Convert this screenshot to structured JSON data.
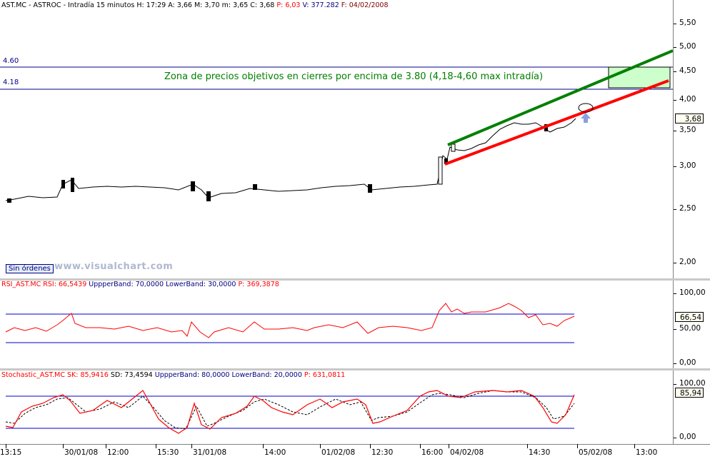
{
  "main_panel": {
    "header": {
      "symbol": "AST.MC - ASTROC - Intradía 15 minutos",
      "h_label": "H:",
      "h_value": "17:29",
      "a_label": "A:",
      "a_value": "3,66",
      "m_label": "M:",
      "m_value": "3,70",
      "mn_label": "m:",
      "mn_value": "3,65",
      "c_label": "C:",
      "c_value": "3,68",
      "p_label": "P:",
      "p_value": "6,03",
      "v_label": "V:",
      "v_value": "377.282",
      "f_label": "F:",
      "f_value": "04/02/2008"
    },
    "hline_top_label": "4.60",
    "hline_bottom_label": "4.18",
    "zone_text": "Zona de precios objetivos en cierres por encima de 3.80 (4,18-4,60 max intradía)",
    "button_sin_ordenes": "Sin órdenes",
    "watermark": "www.visualchart.com",
    "y_ticks": [
      "5,50",
      "5,00",
      "4,50",
      "4,00",
      "3,50",
      "3,00",
      "2,50",
      "2,00"
    ],
    "last_value": "3,68",
    "colors": {
      "up_trend": "#008000",
      "down_trend": "#ff0000",
      "hline": "#00008b",
      "zone_fill": "#ccffcc"
    }
  },
  "rsi_panel": {
    "name": "RSI_AST.MC",
    "rsi_label": "RSI:",
    "rsi_value": "66,5439",
    "upper_label": "UppperBand:",
    "upper_value": "70,0000",
    "lower_label": "LowerBand:",
    "lower_value": "30,0000",
    "p_label": "P:",
    "p_value": "369,3878",
    "y_ticks": [
      "100,00",
      "50,00",
      "0,00"
    ],
    "last_value": "66,54"
  },
  "stoch_panel": {
    "name": "Stochastic_AST.MC",
    "sk_label": "SK:",
    "sk_value": "85,9416",
    "sd_label": "SD:",
    "sd_value": "73,4594",
    "upper_label": "UppperBand:",
    "upper_value": "80,0000",
    "lower_label": "LowerBand:",
    "lower_value": "20,0000",
    "p_label": "P:",
    "p_value": "631,0811",
    "y_ticks": [
      "100,00",
      "0,00"
    ],
    "last_value": "85,94"
  },
  "x_axis": {
    "labels": [
      "13:15",
      "30/01/08",
      "12:00",
      "15:30",
      "31/01/08",
      "14:00",
      "01/02/08",
      "12:30",
      "16:00",
      "04/02/08",
      "14:30",
      "05/02/08",
      "13:00"
    ]
  },
  "chart_data": [
    {
      "type": "candlestick",
      "title": "AST.MC - ASTROC - Intradía 15 minutos",
      "ylim": [
        1.8,
        5.7
      ],
      "y_scale": "log",
      "approx_close_path": [
        2.6,
        2.62,
        2.63,
        2.62,
        2.64,
        2.78,
        2.75,
        2.76,
        2.74,
        2.75,
        2.73,
        2.7,
        2.63,
        2.66,
        2.68,
        2.7,
        2.72,
        2.7,
        2.72,
        2.75,
        2.72,
        2.74,
        2.73,
        2.75,
        3.0,
        3.25,
        3.22,
        3.35,
        3.5,
        3.62,
        3.58,
        3.45,
        3.52,
        3.68
      ],
      "horizontal_lines": [
        4.6,
        4.18
      ],
      "target_zone": [
        4.18,
        4.6
      ]
    },
    {
      "type": "line",
      "name": "RSI",
      "ylim": [
        0,
        100
      ],
      "bands": [
        70,
        30
      ],
      "last": 66.54
    },
    {
      "type": "line",
      "name": "Stochastic",
      "ylim": [
        0,
        100
      ],
      "bands": [
        80,
        20
      ],
      "last": 85.94
    }
  ]
}
